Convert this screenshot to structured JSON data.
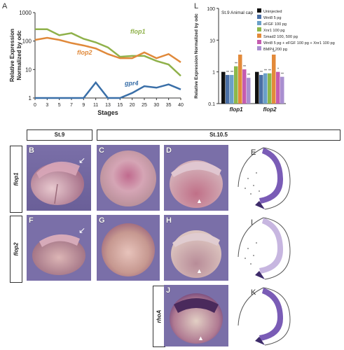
{
  "panel_letters": {
    "A": "A",
    "L": "L",
    "B": "B",
    "C": "C",
    "D": "D",
    "E": "E",
    "F": "F",
    "G": "G",
    "H": "H",
    "I": "I",
    "J": "J",
    "K": "K"
  },
  "chart_data": [
    {
      "type": "line",
      "panel": "A",
      "xlabel": "Stages",
      "ylabel_line1": "Relative Expression",
      "ylabel_line2": "Normalized by odc",
      "yscale": "log",
      "ylim": [
        1,
        1000
      ],
      "yticks": [
        "1000",
        "100",
        "10",
        "1"
      ],
      "x_categories": [
        "0",
        "3",
        "5",
        "7",
        "9",
        "11",
        "13",
        "15",
        "20",
        "25",
        "30",
        "35",
        "40"
      ],
      "series": [
        {
          "name": "flop1",
          "color": "#8fb14a",
          "values": [
            260,
            260,
            160,
            190,
            120,
            90,
            60,
            28,
            30,
            30,
            20,
            15,
            6
          ]
        },
        {
          "name": "flop2",
          "color": "#e0893a",
          "values": [
            110,
            130,
            110,
            85,
            70,
            55,
            35,
            25,
            25,
            40,
            25,
            35,
            18
          ]
        },
        {
          "name": "gpr4",
          "color": "#3a6fa8",
          "values": [
            1,
            1,
            1,
            1,
            1,
            3.5,
            1,
            1,
            1.5,
            2.6,
            2.3,
            3,
            2
          ]
        }
      ],
      "annotations": [
        {
          "text": "flop1",
          "series": "flop1"
        },
        {
          "text": "flop2",
          "series": "flop2"
        },
        {
          "text": "gpr4",
          "series": "gpr4"
        }
      ]
    },
    {
      "type": "bar",
      "panel": "L",
      "title": "St.9 Animal cap",
      "ylabel": "Relative Expression Normalized by odc",
      "yscale": "log",
      "ylim": [
        0.1,
        100
      ],
      "yticks": [
        "100",
        "10",
        "1",
        "0.1"
      ],
      "categories": [
        "flop1",
        "flop2"
      ],
      "series": [
        {
          "name": "Uninjected",
          "color": "#111111",
          "values": [
            1,
            1
          ]
        },
        {
          "name": "Wnt8 5 pg",
          "color": "#4a6fa5",
          "values": [
            0.8,
            0.8
          ]
        },
        {
          "name": "eFGF 100 pg",
          "color": "#6aa0c8",
          "values": [
            0.8,
            0.9
          ]
        },
        {
          "name": "Xnr1 100 pg",
          "color": "#8db84a",
          "values": [
            1.5,
            0.9
          ]
        },
        {
          "name": "Smad2 100, 500 pg",
          "color": "#e38a3a",
          "values": [
            3.5,
            3.5
          ]
        },
        {
          "name": "Wnt8 5 pg + eFGF 100 pg + Xnr1 100 pg",
          "color": "#c45bb0",
          "values": [
            1.2,
            1.0
          ]
        },
        {
          "name": "BMP4 200 pg",
          "color": "#a98fd0",
          "values": [
            0.65,
            0.7
          ]
        }
      ],
      "significance_marks": [
        "**",
        "**",
        "**",
        "*",
        "**",
        "**",
        "**",
        "**",
        "**",
        "**",
        "*",
        "**"
      ]
    }
  ],
  "stage_headers": {
    "st9": "St.9",
    "st105": "St.10.5"
  },
  "gene_labels": {
    "row1": "flop1",
    "row2": "flop2",
    "row3": "rhoA"
  }
}
